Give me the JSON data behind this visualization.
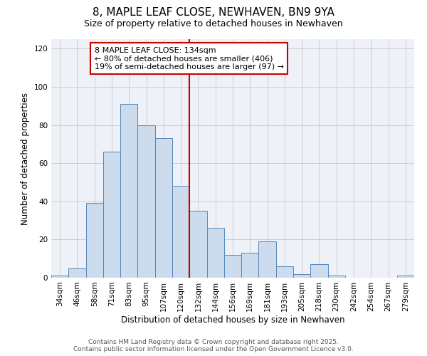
{
  "title": "8, MAPLE LEAF CLOSE, NEWHAVEN, BN9 9YA",
  "subtitle": "Size of property relative to detached houses in Newhaven",
  "xlabel": "Distribution of detached houses by size in Newhaven",
  "ylabel": "Number of detached properties",
  "bin_labels": [
    "34sqm",
    "46sqm",
    "58sqm",
    "71sqm",
    "83sqm",
    "95sqm",
    "107sqm",
    "120sqm",
    "132sqm",
    "144sqm",
    "156sqm",
    "169sqm",
    "181sqm",
    "193sqm",
    "205sqm",
    "218sqm",
    "230sqm",
    "242sqm",
    "254sqm",
    "267sqm",
    "279sqm"
  ],
  "bar_values": [
    1,
    5,
    39,
    66,
    91,
    80,
    73,
    48,
    35,
    26,
    12,
    13,
    19,
    6,
    2,
    7,
    1,
    0,
    0,
    0,
    1
  ],
  "bar_color": "#ccdcec",
  "bar_edge_color": "#5588bb",
  "vline_color": "#cc0000",
  "annotation_text": "8 MAPLE LEAF CLOSE: 134sqm\n← 80% of detached houses are smaller (406)\n19% of semi-detached houses are larger (97) →",
  "annotation_box_color": "#cc0000",
  "ylim": [
    0,
    125
  ],
  "yticks": [
    0,
    20,
    40,
    60,
    80,
    100,
    120
  ],
  "grid_color": "#cccccc",
  "bg_color": "#eef2f8",
  "footer_line1": "Contains HM Land Registry data © Crown copyright and database right 2025.",
  "footer_line2": "Contains public sector information licensed under the Open Government Licence v3.0.",
  "title_fontsize": 11,
  "subtitle_fontsize": 9,
  "axis_label_fontsize": 8.5,
  "tick_fontsize": 7.5,
  "annotation_fontsize": 8,
  "footer_fontsize": 6.5
}
